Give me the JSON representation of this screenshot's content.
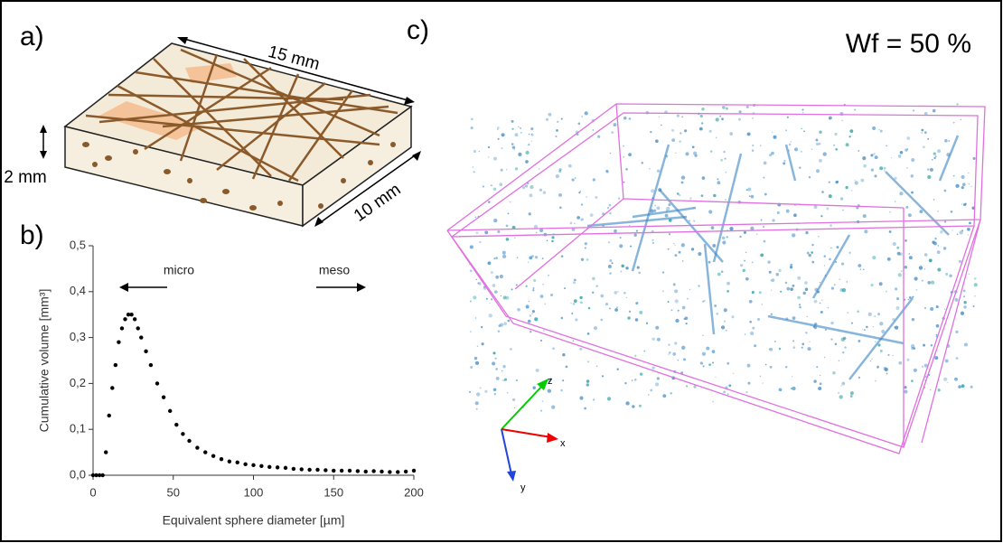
{
  "panel_labels": [
    "a)",
    "b)",
    "c)"
  ],
  "sketch": {
    "dimensions": [
      "15 mm",
      "10 mm",
      "2 mm"
    ]
  },
  "rendering": {
    "annotation": "Wf = 50 %",
    "axes": [
      "z",
      "x",
      "y"
    ]
  },
  "chart_data": {
    "type": "scatter",
    "color": "#000000",
    "x_label": "Equivalent sphere diameter [µm]",
    "y_label": "Cumulative volume [mm³]",
    "annotations": [
      "micro",
      "meso"
    ],
    "x": [
      0,
      2,
      4,
      6,
      8,
      10,
      12,
      14,
      16,
      18,
      20,
      22,
      24,
      26,
      28,
      30,
      33,
      36,
      40,
      44,
      48,
      52,
      56,
      60,
      65,
      70,
      75,
      80,
      85,
      90,
      95,
      100,
      105,
      110,
      115,
      120,
      125,
      130,
      135,
      140,
      145,
      150,
      155,
      160,
      165,
      170,
      175,
      180,
      185,
      190,
      195,
      200
    ],
    "values": [
      0,
      0,
      0,
      0,
      0.05,
      0.13,
      0.19,
      0.24,
      0.29,
      0.32,
      0.34,
      0.35,
      0.35,
      0.34,
      0.32,
      0.3,
      0.27,
      0.24,
      0.2,
      0.17,
      0.14,
      0.11,
      0.09,
      0.075,
      0.06,
      0.05,
      0.042,
      0.035,
      0.03,
      0.028,
      0.024,
      0.022,
      0.02,
      0.018,
      0.017,
      0.016,
      0.014,
      0.013,
      0.012,
      0.012,
      0.011,
      0.01,
      0.01,
      0.01,
      0.009,
      0.008,
      0.009,
      0.008,
      0.007,
      0.007,
      0.008,
      0.01
    ],
    "xlim": [
      0,
      200
    ],
    "xticks": [
      0,
      50,
      100,
      150,
      200
    ],
    "ylim": [
      0,
      0.5
    ],
    "yticks": [
      {
        "value": 0,
        "label": "0,0"
      },
      {
        "value": 0.1,
        "label": "0,1"
      },
      {
        "value": 0.2,
        "label": "0,2"
      },
      {
        "value": 0.3,
        "label": "0,3"
      },
      {
        "value": 0.4,
        "label": "0,4"
      },
      {
        "value": 0.5,
        "label": "0,5"
      }
    ]
  }
}
